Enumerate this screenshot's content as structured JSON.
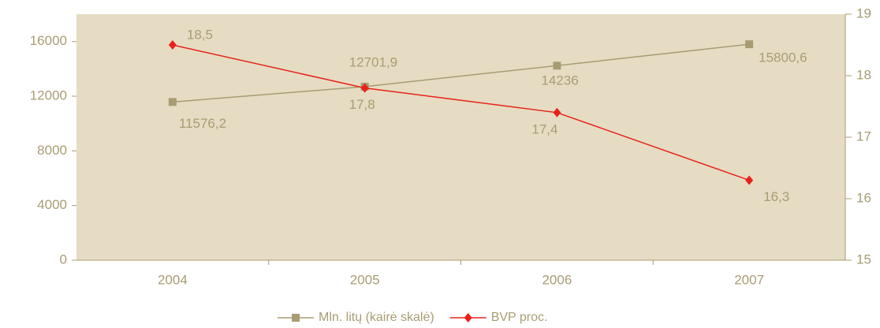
{
  "chart_data": {
    "type": "line",
    "categories": [
      "2004",
      "2005",
      "2006",
      "2007"
    ],
    "series": [
      {
        "name": "Mln. litų (kairė skalė)",
        "color": "#a89c74",
        "values": [
          11576.2,
          12701.9,
          14236,
          15800.6
        ],
        "value_labels": [
          "11576,2",
          "12701,9",
          "14236",
          "15800,6"
        ]
      },
      {
        "name": "BVP proc.",
        "color": "#e8221b",
        "axis": "y2",
        "values": [
          18.5,
          17.8,
          17.4,
          16.3
        ],
        "value_labels": [
          "18,5",
          "17,8",
          "17,4",
          "16,3"
        ]
      }
    ],
    "ylim": [
      0,
      18000
    ],
    "yticks": [
      0,
      4000,
      8000,
      12000,
      16000
    ],
    "y2lim": [
      15,
      19
    ],
    "y2ticks": [
      15,
      16,
      17,
      18,
      19
    ],
    "legend": "bottom"
  }
}
